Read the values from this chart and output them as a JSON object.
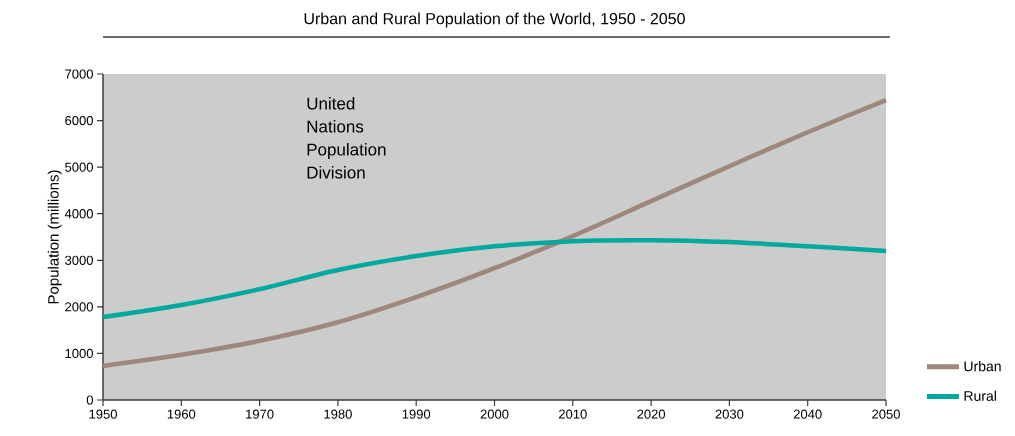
{
  "chart_data": {
    "type": "line",
    "title": "Urban and Rural Population of the World, 1950 - 2050",
    "ylabel": "Population (millions)",
    "x": [
      1950,
      1960,
      1970,
      1980,
      1990,
      2000,
      2010,
      2020,
      2030,
      2040,
      2050
    ],
    "series": [
      {
        "name": "Urban",
        "color": "#9e877c",
        "values": [
          730,
          970,
          1270,
          1670,
          2210,
          2830,
          3520,
          4270,
          5020,
          5750,
          6440
        ]
      },
      {
        "name": "Rural",
        "color": "#00a99d",
        "values": [
          1780,
          2040,
          2380,
          2790,
          3090,
          3300,
          3410,
          3430,
          3390,
          3300,
          3200
        ]
      }
    ],
    "xlim": [
      1950,
      2050
    ],
    "ylim": [
      0,
      7000
    ],
    "xticks": [
      1950,
      1960,
      1970,
      1980,
      1990,
      2000,
      2010,
      2020,
      2030,
      2040,
      2050
    ],
    "yticks": [
      0,
      1000,
      2000,
      3000,
      4000,
      5000,
      6000,
      7000
    ],
    "annotations": [
      "United Nations Population Division"
    ],
    "legend": "bottom right",
    "grid": false
  }
}
